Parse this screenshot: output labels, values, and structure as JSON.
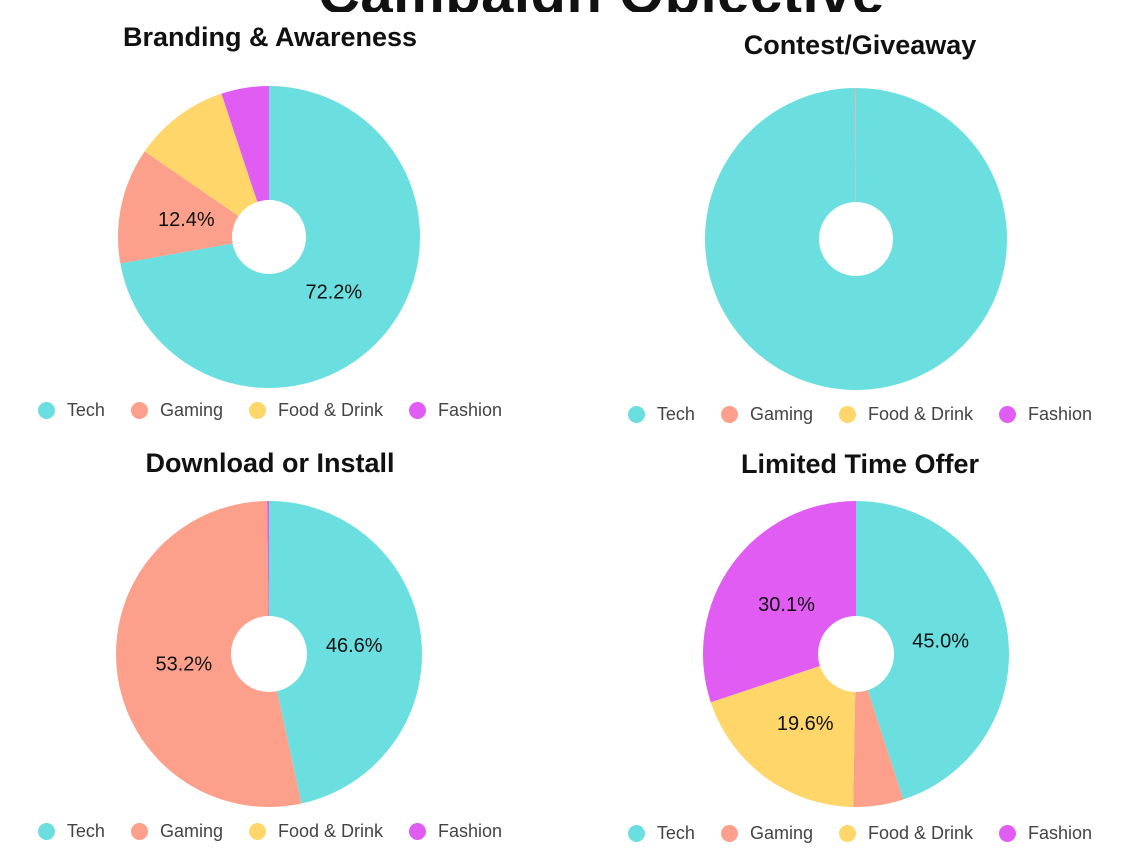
{
  "colors": {
    "Tech": "#6bdfe0",
    "Gaming": "#fca08c",
    "Food & Drink": "#fed66a",
    "Fashion": "#e15cf2"
  },
  "header": {
    "partial_title": "Campaign Objective"
  },
  "chart_data": [
    {
      "type": "pie",
      "title": "Branding & Awareness",
      "categories": [
        "Tech",
        "Gaming",
        "Food & Drink",
        "Fashion"
      ],
      "values": [
        72.2,
        12.4,
        10.3,
        5.1
      ],
      "data_labels": [
        "72.2%",
        "12.4%",
        "",
        ""
      ],
      "legend": "bottom"
    },
    {
      "type": "pie",
      "title": "Contest/Giveaway",
      "categories": [
        "Tech",
        "Gaming",
        "Food & Drink",
        "Fashion"
      ],
      "values": [
        99.9,
        0.05,
        0.025,
        0.025
      ],
      "data_labels": [
        "",
        "",
        "",
        ""
      ],
      "legend": "bottom"
    },
    {
      "type": "pie",
      "title": "Download or Install",
      "categories": [
        "Tech",
        "Gaming",
        "Food & Drink",
        "Fashion"
      ],
      "values": [
        46.6,
        53.2,
        0,
        0.2
      ],
      "data_labels": [
        "46.6%",
        "53.2%",
        "",
        ""
      ],
      "legend": "bottom"
    },
    {
      "type": "pie",
      "title": "Limited Time Offer",
      "categories": [
        "Tech",
        "Gaming",
        "Food & Drink",
        "Fashion"
      ],
      "values": [
        45.0,
        5.3,
        19.6,
        30.1
      ],
      "data_labels": [
        "45.0%",
        "",
        "19.6%",
        "30.1%"
      ],
      "legend": "bottom"
    }
  ]
}
